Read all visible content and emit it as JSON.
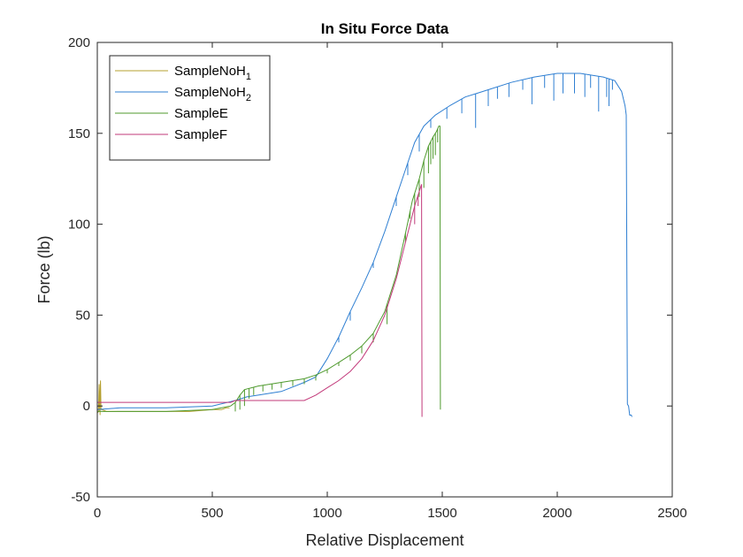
{
  "chart_data": {
    "type": "line",
    "title": "In Situ Force Data",
    "xlabel": "Relative Displacement",
    "ylabel": "Force (lb)",
    "xlim": [
      0,
      2500
    ],
    "ylim": [
      -50,
      200
    ],
    "xticks": [
      "0",
      "500",
      "1000",
      "1500",
      "2000",
      "2500"
    ],
    "yticks": [
      "-50",
      "0",
      "50",
      "100",
      "150",
      "200"
    ],
    "grid": false,
    "legend_position": "top-left",
    "series": [
      {
        "name": "SampleNoH",
        "name_sub": "1",
        "color": "#b5a02f",
        "points": [
          [
            0,
            -4
          ],
          [
            5,
            -3
          ],
          [
            8,
            12
          ],
          [
            10,
            -3
          ],
          [
            14,
            14
          ],
          [
            16,
            -2
          ],
          [
            20,
            -2
          ],
          [
            40,
            -3
          ],
          [
            100,
            -3
          ],
          [
            200,
            -3
          ],
          [
            300,
            -3
          ],
          [
            400,
            -3
          ],
          [
            500,
            -2
          ],
          [
            540,
            -2
          ],
          [
            560,
            -1
          ],
          [
            575,
            -1
          ]
        ],
        "spikes": [
          [
            12,
            -5
          ]
        ]
      },
      {
        "name": "SampleNoH",
        "name_sub": "2",
        "color": "#2f7fd2",
        "points": [
          [
            0,
            -2
          ],
          [
            100,
            -1
          ],
          [
            300,
            -1
          ],
          [
            500,
            0
          ],
          [
            600,
            3
          ],
          [
            650,
            5
          ],
          [
            700,
            6
          ],
          [
            800,
            8
          ],
          [
            900,
            13
          ],
          [
            950,
            16
          ],
          [
            1000,
            26
          ],
          [
            1050,
            38
          ],
          [
            1100,
            52
          ],
          [
            1150,
            65
          ],
          [
            1200,
            79
          ],
          [
            1250,
            96
          ],
          [
            1300,
            115
          ],
          [
            1340,
            130
          ],
          [
            1380,
            145
          ],
          [
            1420,
            154
          ],
          [
            1470,
            160
          ],
          [
            1530,
            165
          ],
          [
            1600,
            170
          ],
          [
            1650,
            172
          ],
          [
            1700,
            174
          ],
          [
            1800,
            178
          ],
          [
            1900,
            181
          ],
          [
            2000,
            183
          ],
          [
            2050,
            183
          ],
          [
            2100,
            183
          ],
          [
            2200,
            181
          ],
          [
            2250,
            179
          ],
          [
            2280,
            173
          ],
          [
            2295,
            165
          ],
          [
            2300,
            160
          ],
          [
            2305,
            1
          ],
          [
            2310,
            0
          ],
          [
            2315,
            -5
          ],
          [
            2322,
            -5
          ],
          [
            2325,
            -6
          ]
        ],
        "spikes": [
          [
            1050,
            35
          ],
          [
            1100,
            47
          ],
          [
            1200,
            76
          ],
          [
            1300,
            110
          ],
          [
            1350,
            127
          ],
          [
            1400,
            140
          ],
          [
            1450,
            153
          ],
          [
            1520,
            158
          ],
          [
            1585,
            161
          ],
          [
            1645,
            153
          ],
          [
            1700,
            165
          ],
          [
            1740,
            169
          ],
          [
            1790,
            170
          ],
          [
            1850,
            174
          ],
          [
            1890,
            166
          ],
          [
            1945,
            175
          ],
          [
            1985,
            168
          ],
          [
            2025,
            172
          ],
          [
            2075,
            172
          ],
          [
            2120,
            170
          ],
          [
            2145,
            175
          ],
          [
            2180,
            162
          ],
          [
            2215,
            170
          ],
          [
            2225,
            165
          ],
          [
            2240,
            174
          ]
        ]
      },
      {
        "name": "SampleE",
        "name_sub": "",
        "color": "#4f9a2e",
        "points": [
          [
            0,
            -3
          ],
          [
            100,
            -3
          ],
          [
            300,
            -3
          ],
          [
            500,
            -2
          ],
          [
            580,
            0
          ],
          [
            600,
            2
          ],
          [
            620,
            6
          ],
          [
            640,
            9
          ],
          [
            700,
            11
          ],
          [
            800,
            13
          ],
          [
            900,
            15
          ],
          [
            950,
            17
          ],
          [
            1000,
            20
          ],
          [
            1050,
            24
          ],
          [
            1100,
            28
          ],
          [
            1150,
            33
          ],
          [
            1200,
            40
          ],
          [
            1250,
            52
          ],
          [
            1300,
            72
          ],
          [
            1340,
            95
          ],
          [
            1370,
            113
          ],
          [
            1400,
            125
          ],
          [
            1420,
            135
          ],
          [
            1440,
            143
          ],
          [
            1460,
            148
          ],
          [
            1475,
            151
          ],
          [
            1485,
            154
          ],
          [
            1490,
            154
          ],
          [
            1492,
            -2
          ]
        ],
        "spikes": [
          [
            600,
            -3
          ],
          [
            620,
            -2
          ],
          [
            640,
            0
          ],
          [
            660,
            4
          ],
          [
            680,
            6
          ],
          [
            720,
            8
          ],
          [
            760,
            9
          ],
          [
            800,
            10
          ],
          [
            850,
            11
          ],
          [
            900,
            12
          ],
          [
            950,
            14
          ],
          [
            1000,
            18
          ],
          [
            1050,
            22
          ],
          [
            1100,
            25
          ],
          [
            1150,
            29
          ],
          [
            1200,
            35
          ],
          [
            1260,
            45
          ],
          [
            1340,
            90
          ],
          [
            1360,
            103
          ],
          [
            1380,
            110
          ],
          [
            1400,
            115
          ],
          [
            1420,
            120
          ],
          [
            1440,
            128
          ],
          [
            1450,
            133
          ],
          [
            1460,
            136
          ],
          [
            1470,
            138
          ],
          [
            1480,
            145
          ]
        ]
      },
      {
        "name": "SampleF",
        "name_sub": "",
        "color": "#c2397a",
        "points": [
          [
            0,
            2
          ],
          [
            100,
            2
          ],
          [
            300,
            2
          ],
          [
            500,
            2
          ],
          [
            580,
            2
          ],
          [
            600,
            3
          ],
          [
            650,
            3
          ],
          [
            700,
            3
          ],
          [
            800,
            3
          ],
          [
            900,
            3
          ],
          [
            950,
            6
          ],
          [
            1000,
            10
          ],
          [
            1050,
            14
          ],
          [
            1100,
            19
          ],
          [
            1150,
            26
          ],
          [
            1200,
            36
          ],
          [
            1250,
            50
          ],
          [
            1300,
            70
          ],
          [
            1330,
            85
          ],
          [
            1360,
            100
          ],
          [
            1380,
            110
          ],
          [
            1395,
            116
          ],
          [
            1405,
            120
          ],
          [
            1410,
            122
          ],
          [
            1412,
            -6
          ]
        ],
        "spikes": [
          [
            1380,
            100
          ],
          [
            1395,
            110
          ]
        ]
      }
    ]
  }
}
